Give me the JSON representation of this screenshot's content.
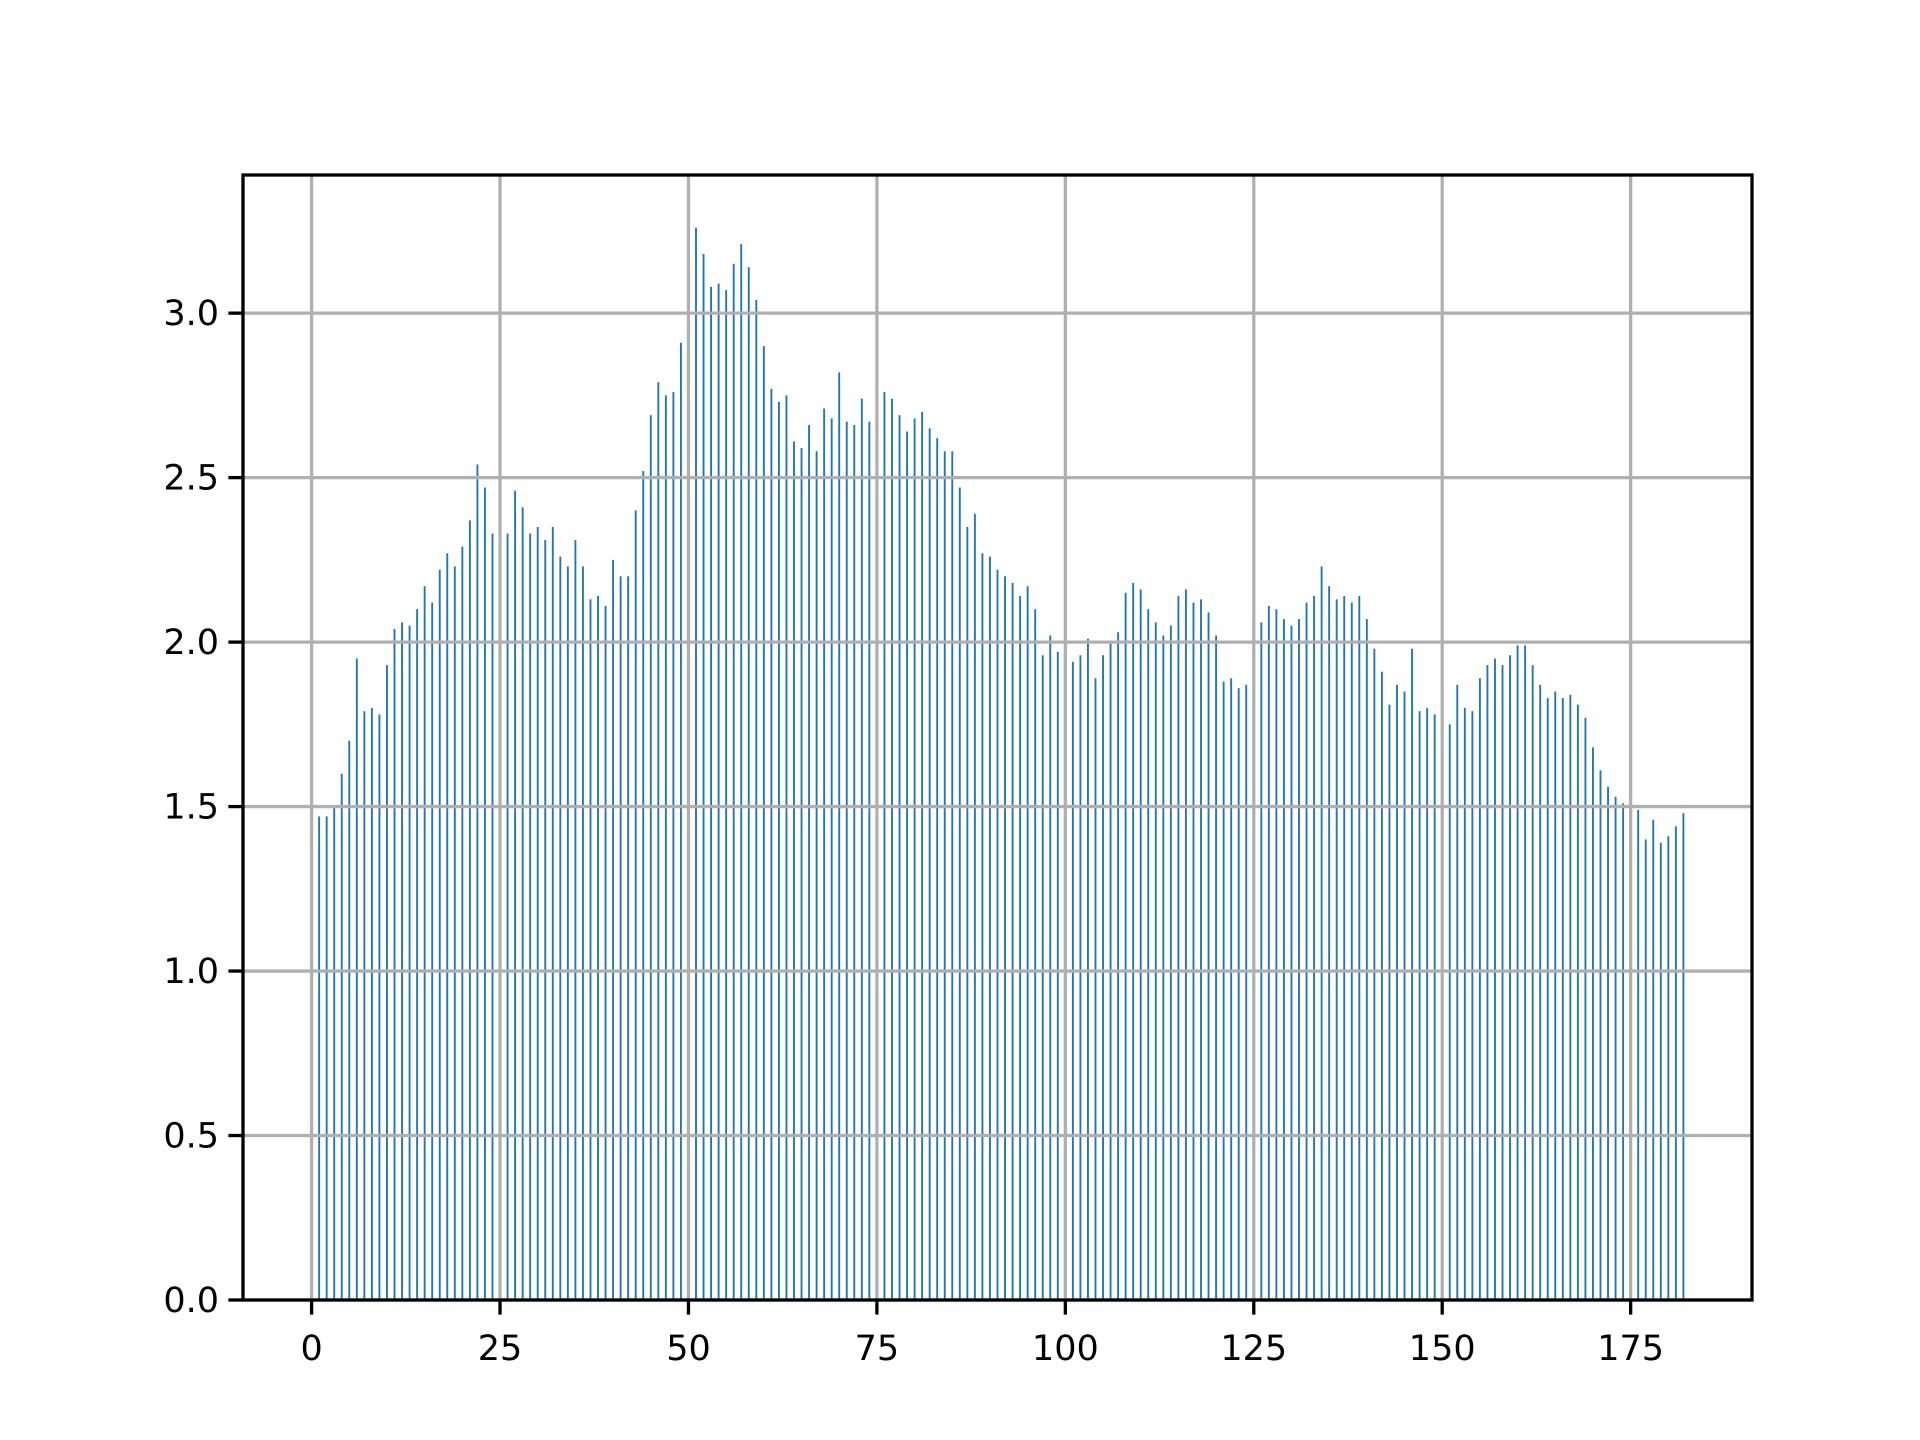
{
  "chart_data": {
    "type": "bar",
    "x": [
      1,
      2,
      3,
      4,
      5,
      6,
      7,
      8,
      9,
      10,
      11,
      12,
      13,
      14,
      15,
      16,
      17,
      18,
      19,
      20,
      21,
      22,
      23,
      24,
      25,
      26,
      27,
      28,
      29,
      30,
      31,
      32,
      33,
      34,
      35,
      36,
      37,
      38,
      39,
      40,
      41,
      42,
      43,
      44,
      45,
      46,
      47,
      48,
      49,
      50,
      51,
      52,
      53,
      54,
      55,
      56,
      57,
      58,
      59,
      60,
      61,
      62,
      63,
      64,
      65,
      66,
      67,
      68,
      69,
      70,
      71,
      72,
      73,
      74,
      75,
      76,
      77,
      78,
      79,
      80,
      81,
      82,
      83,
      84,
      85,
      86,
      87,
      88,
      89,
      90,
      91,
      92,
      93,
      94,
      95,
      96,
      97,
      98,
      99,
      100,
      101,
      102,
      103,
      104,
      105,
      106,
      107,
      108,
      109,
      110,
      111,
      112,
      113,
      114,
      115,
      116,
      117,
      118,
      119,
      120,
      121,
      122,
      123,
      124,
      125,
      126,
      127,
      128,
      129,
      130,
      131,
      132,
      133,
      134,
      135,
      136,
      137,
      138,
      139,
      140,
      141,
      142,
      143,
      144,
      145,
      146,
      147,
      148,
      149,
      150,
      151,
      152,
      153,
      154,
      155,
      156,
      157,
      158,
      159,
      160,
      161,
      162,
      163,
      164,
      165,
      166,
      167,
      168,
      169,
      170,
      171,
      172,
      173,
      174,
      175,
      176,
      177,
      178,
      179,
      180,
      181,
      182
    ],
    "values": [
      1.47,
      1.47,
      1.5,
      1.6,
      1.7,
      1.95,
      1.79,
      1.8,
      1.78,
      1.93,
      2.04,
      2.06,
      2.05,
      2.1,
      2.17,
      2.12,
      2.22,
      2.27,
      2.23,
      2.29,
      2.37,
      2.54,
      2.47,
      2.33,
      2.39,
      2.33,
      2.46,
      2.41,
      2.33,
      2.35,
      2.31,
      2.35,
      2.26,
      2.23,
      2.31,
      2.23,
      2.13,
      2.14,
      2.11,
      2.25,
      2.2,
      2.2,
      2.4,
      2.52,
      2.69,
      2.79,
      2.75,
      2.76,
      2.91,
      2.64,
      3.26,
      3.18,
      3.08,
      3.09,
      3.07,
      3.15,
      3.21,
      3.14,
      3.04,
      2.9,
      2.77,
      2.73,
      2.75,
      2.61,
      2.59,
      2.66,
      2.58,
      2.71,
      2.68,
      2.82,
      2.67,
      2.66,
      2.74,
      2.67,
      2.71,
      2.76,
      2.74,
      2.69,
      2.64,
      2.68,
      2.7,
      2.65,
      2.62,
      2.58,
      2.58,
      2.47,
      2.35,
      2.39,
      2.27,
      2.26,
      2.22,
      2.2,
      2.18,
      2.14,
      2.17,
      2.1,
      1.96,
      2.02,
      1.97,
      1.91,
      1.94,
      1.96,
      2.01,
      1.89,
      1.96,
      2.0,
      2.03,
      2.15,
      2.18,
      2.16,
      2.1,
      2.06,
      2.02,
      2.05,
      2.14,
      2.16,
      2.12,
      2.13,
      2.09,
      2.02,
      1.88,
      1.89,
      1.86,
      1.87,
      1.92,
      2.06,
      2.11,
      2.1,
      2.07,
      2.05,
      2.07,
      2.12,
      2.14,
      2.23,
      2.17,
      2.13,
      2.14,
      2.12,
      2.14,
      2.07,
      1.98,
      1.91,
      1.81,
      1.87,
      1.85,
      1.98,
      1.79,
      1.8,
      1.78,
      1.79,
      1.75,
      1.87,
      1.8,
      1.79,
      1.89,
      1.93,
      1.95,
      1.93,
      1.96,
      1.99,
      1.99,
      1.93,
      1.87,
      1.83,
      1.85,
      1.83,
      1.84,
      1.81,
      1.77,
      1.68,
      1.61,
      1.56,
      1.53,
      1.51,
      1.48,
      1.49,
      1.4,
      1.46,
      1.39,
      1.41,
      1.44,
      1.48
    ],
    "color": "#1f77b4",
    "xlim": [
      -9.1,
      191.1
    ],
    "xticks": [
      0,
      25,
      50,
      75,
      100,
      125,
      150,
      175
    ],
    "ylim": [
      0,
      3.42
    ],
    "yticks": [
      {
        "value": 0,
        "label": "0.0"
      },
      {
        "value": 0.5,
        "label": "0.5"
      },
      {
        "value": 1,
        "label": "1.0"
      },
      {
        "value": 1.5,
        "label": "1.5"
      },
      {
        "value": 2,
        "label": "2.0"
      },
      {
        "value": 2.5,
        "label": "2.5"
      },
      {
        "value": 3,
        "label": "3.0"
      }
    ],
    "grid": true
  }
}
